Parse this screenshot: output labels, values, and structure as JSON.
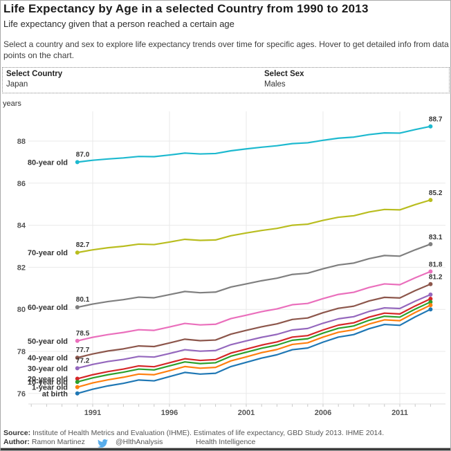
{
  "header": {
    "title": "Life Expectancy by Age in a selected Country from 1990 to 2013",
    "subtitle": "Life expectancy given that a person reached a certain age",
    "description": "Select a country and sex to explore life expectancy trends over time for specific ages. Hover to get detailed info from data points on the chart."
  },
  "controls": {
    "country": {
      "label": "Select Country",
      "value": "Japan"
    },
    "sex": {
      "label": "Select Sex",
      "value": "Males"
    }
  },
  "chart_data": {
    "type": "line",
    "unit_label": "years",
    "x": [
      1990,
      1991,
      1992,
      1993,
      1994,
      1995,
      1996,
      1997,
      1998,
      1999,
      2000,
      2001,
      2002,
      2003,
      2004,
      2005,
      2006,
      2007,
      2008,
      2009,
      2010,
      2011,
      2012,
      2013
    ],
    "x_major_ticks": [
      1991,
      1996,
      2001,
      2006,
      2011
    ],
    "y_ticks": [
      76,
      78,
      80,
      82,
      84,
      86,
      88
    ],
    "ylim": [
      75.5,
      89.4
    ],
    "grid": "on",
    "legend": "inline-left-series-labels",
    "series": [
      {
        "name": "80-year old",
        "color": "#1db9cf",
        "start_label": "87.0",
        "end_label": "88.7",
        "values": [
          87.0,
          87.09,
          87.15,
          87.2,
          87.27,
          87.26,
          87.34,
          87.43,
          87.39,
          87.41,
          87.54,
          87.63,
          87.71,
          87.78,
          87.88,
          87.92,
          88.04,
          88.14,
          88.19,
          88.31,
          88.39,
          88.38,
          88.55,
          88.7
        ]
      },
      {
        "name": "70-year old",
        "color": "#b9bd1f",
        "start_label": "82.7",
        "end_label": "85.2",
        "values": [
          82.7,
          82.83,
          82.93,
          83.0,
          83.1,
          83.08,
          83.2,
          83.33,
          83.28,
          83.3,
          83.5,
          83.63,
          83.75,
          83.85,
          84.0,
          84.05,
          84.23,
          84.38,
          84.45,
          84.63,
          84.75,
          84.73,
          84.98,
          85.2
        ]
      },
      {
        "name": "60-year old",
        "color": "#7f7f7f",
        "start_label": "80.1",
        "end_label": "83.1",
        "values": [
          80.1,
          80.25,
          80.37,
          80.46,
          80.58,
          80.55,
          80.7,
          80.85,
          80.79,
          80.82,
          81.06,
          81.21,
          81.36,
          81.48,
          81.66,
          81.72,
          81.93,
          82.11,
          82.2,
          82.41,
          82.56,
          82.53,
          82.83,
          83.1
        ]
      },
      {
        "name": "50-year old",
        "color": "#ea6fbc",
        "start_label": "78.5",
        "end_label": "81.8",
        "values": [
          78.5,
          78.67,
          78.8,
          78.9,
          79.03,
          79.0,
          79.16,
          79.33,
          79.26,
          79.29,
          79.56,
          79.72,
          79.89,
          80.02,
          80.22,
          80.28,
          80.51,
          80.71,
          80.81,
          81.04,
          81.21,
          81.17,
          81.5,
          81.8
        ]
      },
      {
        "name": "40-year old",
        "color": "#8c564b",
        "start_label": "77.7",
        "end_label": "81.2",
        "values": [
          77.7,
          77.88,
          78.02,
          78.12,
          78.26,
          78.23,
          78.4,
          78.58,
          78.51,
          78.54,
          78.82,
          79.0,
          79.17,
          79.31,
          79.52,
          79.59,
          79.84,
          80.05,
          80.15,
          80.4,
          80.57,
          80.54,
          80.89,
          81.2
        ]
      },
      {
        "name": "30-year old",
        "color": "#9467bd",
        "start_label": "77.2",
        "end_label": null,
        "values": [
          77.2,
          77.38,
          77.52,
          77.62,
          77.76,
          77.73,
          77.9,
          78.08,
          78.01,
          78.04,
          78.32,
          78.5,
          78.67,
          78.81,
          79.02,
          79.09,
          79.34,
          79.55,
          79.65,
          79.9,
          80.07,
          80.04,
          80.39,
          80.7
        ]
      },
      {
        "name": "20-year old",
        "color": "#d62728",
        "start_label": null,
        "end_label": null,
        "values": [
          76.7,
          76.89,
          77.04,
          77.16,
          77.31,
          77.27,
          77.46,
          77.65,
          77.57,
          77.61,
          77.92,
          78.11,
          78.3,
          78.45,
          78.68,
          78.75,
          79.02,
          79.25,
          79.36,
          79.63,
          79.82,
          79.78,
          80.16,
          80.5
        ]
      },
      {
        "name": "10-year old",
        "color": "#2ca02c",
        "start_label": null,
        "end_label": null,
        "values": [
          76.55,
          76.74,
          76.89,
          77.01,
          77.16,
          77.12,
          77.31,
          77.5,
          77.42,
          77.46,
          77.77,
          77.96,
          78.15,
          78.3,
          78.53,
          78.6,
          78.87,
          79.1,
          79.21,
          79.48,
          79.67,
          79.63,
          80.01,
          80.35
        ]
      },
      {
        "name": "1-year old",
        "color": "#ff7f0e",
        "start_label": null,
        "end_label": null,
        "values": [
          76.3,
          76.5,
          76.65,
          76.77,
          76.92,
          76.89,
          77.08,
          77.28,
          77.2,
          77.24,
          77.55,
          77.74,
          77.94,
          78.09,
          78.33,
          78.41,
          78.68,
          78.91,
          79.03,
          79.3,
          79.5,
          79.46,
          79.85,
          80.2
        ]
      },
      {
        "name": "at birth",
        "color": "#1f77b4",
        "start_label": null,
        "end_label": null,
        "values": [
          76.0,
          76.2,
          76.36,
          76.48,
          76.64,
          76.6,
          76.8,
          77.0,
          76.92,
          76.96,
          77.28,
          77.48,
          77.68,
          77.84,
          78.08,
          78.16,
          78.44,
          78.68,
          78.8,
          79.08,
          79.28,
          79.24,
          79.64,
          80.0
        ]
      }
    ]
  },
  "footer": {
    "source_label": "Source:",
    "source_text": "Institute of Health Metrics and Evaluation (IHME). Estimates of life expectancy, GBD Study 2013. IHME 2014.",
    "author_label": "Author:",
    "author_name": "Ramon Martinez",
    "twitter_handle": "@HlthAnalysis",
    "site_name": "Health Intelligence",
    "twitter_color": "#59adeb"
  }
}
